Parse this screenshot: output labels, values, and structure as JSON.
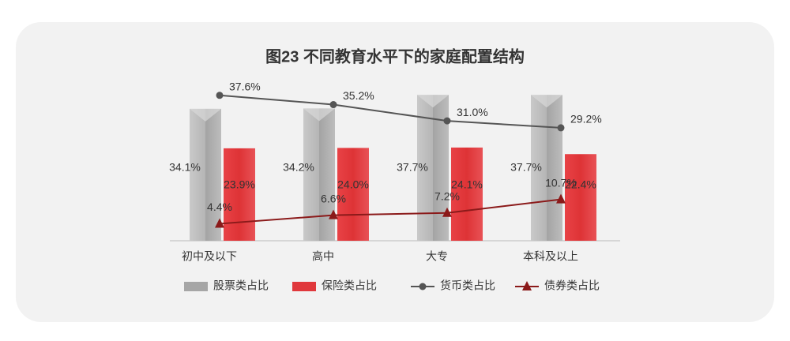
{
  "chart_data": {
    "type": "bar_line",
    "title": "图23 不同教育水平下的家庭配置结构",
    "categories": [
      "初中及以下",
      "高中",
      "大专",
      "本科及以上"
    ],
    "series": [
      {
        "name": "股票类占比",
        "type": "bar",
        "color": "#a6a6a6",
        "values": [
          34.1,
          34.2,
          37.7,
          37.7
        ],
        "value_labels": [
          "34.1%",
          "34.2%",
          "37.7%",
          "37.7%"
        ]
      },
      {
        "name": "保险类占比",
        "type": "bar",
        "color": "#e0383c",
        "values": [
          23.9,
          24.0,
          24.1,
          22.4
        ],
        "value_labels": [
          "23.9%",
          "24.0%",
          "24.1%",
          "22.4%"
        ]
      },
      {
        "name": "货币类占比",
        "type": "line",
        "marker": "circle",
        "color": "#555555",
        "values": [
          37.6,
          35.2,
          31.0,
          29.2
        ],
        "value_labels": [
          "37.6%",
          "35.2%",
          "31.0%",
          "29.2%"
        ]
      },
      {
        "name": "债券类占比",
        "type": "line",
        "marker": "triangle",
        "color": "#8b1a1a",
        "values": [
          4.4,
          6.6,
          7.2,
          10.7
        ],
        "value_labels": [
          "4.4%",
          "6.6%",
          "7.2%",
          "10.7%"
        ]
      }
    ]
  }
}
